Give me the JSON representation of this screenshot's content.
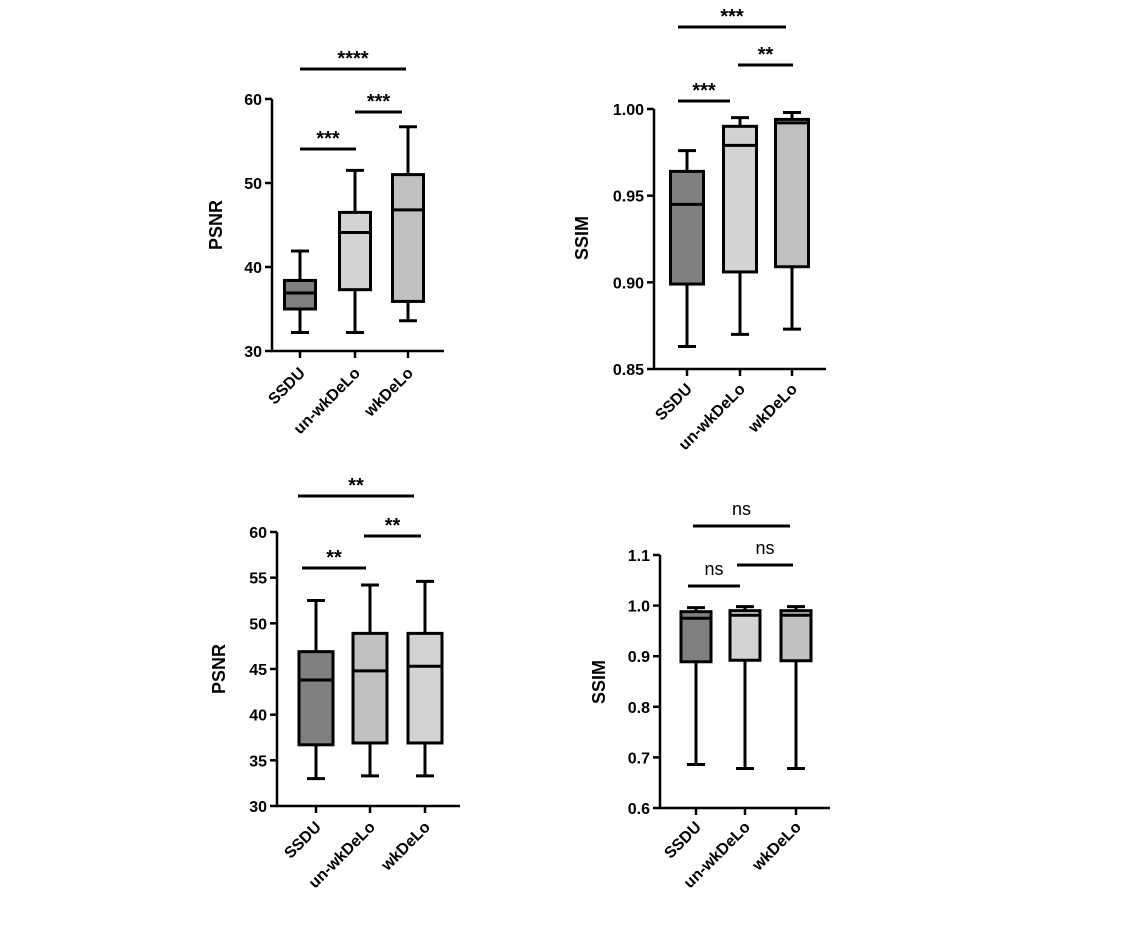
{
  "chart_data": [
    {
      "type": "boxplot",
      "ylabel": "PSNR",
      "ylim": [
        30,
        60
      ],
      "yticks": [
        "30",
        "40",
        "50",
        "60"
      ],
      "categories": [
        "SSDU",
        "un-wkDeLo",
        "wkDeLo"
      ],
      "colors": [
        "#808080",
        "#d3d3d3",
        "#c0c0c0"
      ],
      "boxes": [
        {
          "min": 32.2,
          "q1": 35.0,
          "median": 36.9,
          "q3": 38.4,
          "max": 41.9
        },
        {
          "min": 32.2,
          "q1": 37.3,
          "median": 44.1,
          "q3": 46.5,
          "max": 51.5
        },
        {
          "min": 33.6,
          "q1": 35.9,
          "median": 46.8,
          "q3": 51.0,
          "max": 56.7
        }
      ],
      "significance": [
        {
          "pair": [
            0,
            1
          ],
          "label": "***"
        },
        {
          "pair": [
            1,
            2
          ],
          "label": "***"
        },
        {
          "pair": [
            0,
            2
          ],
          "label": "****"
        }
      ]
    },
    {
      "type": "boxplot",
      "ylabel": "SSIM",
      "ylim": [
        0.85,
        1.0
      ],
      "yticks": [
        "0.85",
        "0.90",
        "0.95",
        "1.00"
      ],
      "categories": [
        "SSDU",
        "un-wkDeLo",
        "wkDeLo"
      ],
      "colors": [
        "#808080",
        "#d3d3d3",
        "#c0c0c0"
      ],
      "boxes": [
        {
          "min": 0.863,
          "q1": 0.899,
          "median": 0.945,
          "q3": 0.964,
          "max": 0.976
        },
        {
          "min": 0.87,
          "q1": 0.906,
          "median": 0.979,
          "q3": 0.99,
          "max": 0.995
        },
        {
          "min": 0.873,
          "q1": 0.909,
          "median": 0.992,
          "q3": 0.994,
          "max": 0.998
        }
      ],
      "significance": [
        {
          "pair": [
            0,
            1
          ],
          "label": "***"
        },
        {
          "pair": [
            1,
            2
          ],
          "label": "**"
        },
        {
          "pair": [
            0,
            2
          ],
          "label": "***"
        }
      ]
    },
    {
      "type": "boxplot",
      "ylabel": "PSNR",
      "ylim": [
        30,
        60
      ],
      "yticks": [
        "30",
        "35",
        "40",
        "45",
        "50",
        "55",
        "60"
      ],
      "categories": [
        "SSDU",
        "un-wkDeLo",
        "wkDeLo"
      ],
      "colors": [
        "#808080",
        "#c0c0c0",
        "#d3d3d3"
      ],
      "boxes": [
        {
          "min": 33.0,
          "q1": 36.7,
          "median": 43.8,
          "q3": 46.9,
          "max": 52.5
        },
        {
          "min": 33.3,
          "q1": 36.9,
          "median": 44.8,
          "q3": 48.9,
          "max": 54.2
        },
        {
          "min": 33.3,
          "q1": 36.9,
          "median": 45.3,
          "q3": 48.9,
          "max": 54.6
        }
      ],
      "significance": [
        {
          "pair": [
            0,
            1
          ],
          "label": "**"
        },
        {
          "pair": [
            1,
            2
          ],
          "label": "**"
        },
        {
          "pair": [
            0,
            2
          ],
          "label": "**"
        }
      ]
    },
    {
      "type": "boxplot",
      "ylabel": "SSIM",
      "ylim": [
        0.6,
        1.1
      ],
      "yticks": [
        "0.6",
        "0.7",
        "0.8",
        "0.9",
        "1.0",
        "1.1"
      ],
      "categories": [
        "SSDU",
        "un-wkDeLo",
        "wkDeLo"
      ],
      "colors": [
        "#808080",
        "#d3d3d3",
        "#c0c0c0"
      ],
      "boxes": [
        {
          "min": 0.686,
          "q1": 0.889,
          "median": 0.975,
          "q3": 0.988,
          "max": 0.996
        },
        {
          "min": 0.678,
          "q1": 0.892,
          "median": 0.981,
          "q3": 0.99,
          "max": 0.998
        },
        {
          "min": 0.678,
          "q1": 0.891,
          "median": 0.981,
          "q3": 0.99,
          "max": 0.998
        }
      ],
      "significance": [
        {
          "pair": [
            0,
            1
          ],
          "label": "ns"
        },
        {
          "pair": [
            1,
            2
          ],
          "label": "ns"
        },
        {
          "pair": [
            0,
            2
          ],
          "label": "ns"
        }
      ]
    }
  ]
}
